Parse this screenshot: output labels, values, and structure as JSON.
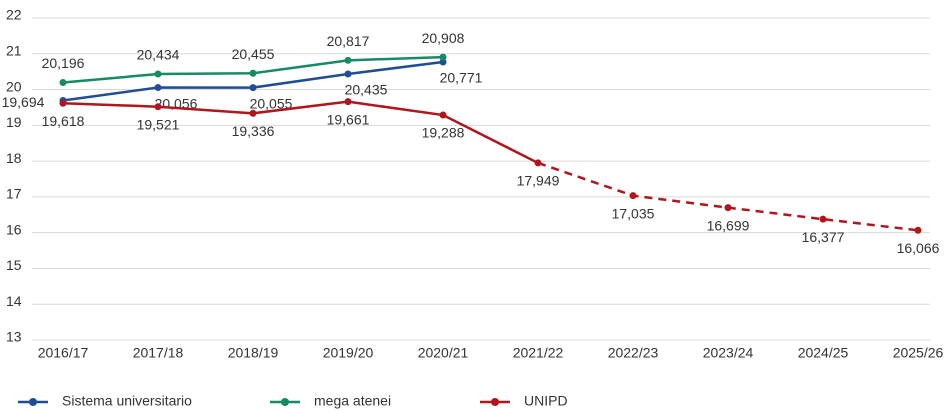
{
  "chart_data": {
    "type": "line",
    "categories": [
      "2016/17",
      "2017/18",
      "2018/19",
      "2019/20",
      "2020/21",
      "2021/22",
      "2022/23",
      "2023/24",
      "2024/25",
      "2025/26"
    ],
    "series": [
      {
        "name": "Sistema universitario",
        "color": "#1f4e96",
        "values": [
          19.694,
          20.056,
          20.055,
          20.435,
          20.771,
          null,
          null,
          null,
          null,
          null
        ],
        "value_labels": [
          "19,694",
          "20,056",
          "20,055",
          "20,435",
          "20,771",
          null,
          null,
          null,
          null,
          null
        ]
      },
      {
        "name": "mega atenei",
        "color": "#168a62",
        "values": [
          20.196,
          20.434,
          20.455,
          20.817,
          20.908,
          null,
          null,
          null,
          null,
          null
        ],
        "value_labels": [
          "20,196",
          "20,434",
          "20,455",
          "20,817",
          "20,908",
          null,
          null,
          null,
          null,
          null
        ]
      },
      {
        "name": "UNIPD",
        "color": "#b0161c",
        "dash_from": "2021/22",
        "values": [
          19.618,
          19.521,
          19.336,
          19.661,
          19.288,
          17.949,
          17.035,
          16.699,
          16.377,
          16.066
        ],
        "value_labels": [
          "19,618",
          "19,521",
          "19,336",
          "19,661",
          "19,288",
          "17,949",
          "17,035",
          "16,699",
          "16,377",
          "16,066"
        ]
      }
    ],
    "ylim": [
      13,
      22
    ],
    "yticks": [
      13,
      14,
      15,
      16,
      17,
      18,
      19,
      20,
      21,
      22
    ],
    "grid": true,
    "legend": "bottom"
  }
}
